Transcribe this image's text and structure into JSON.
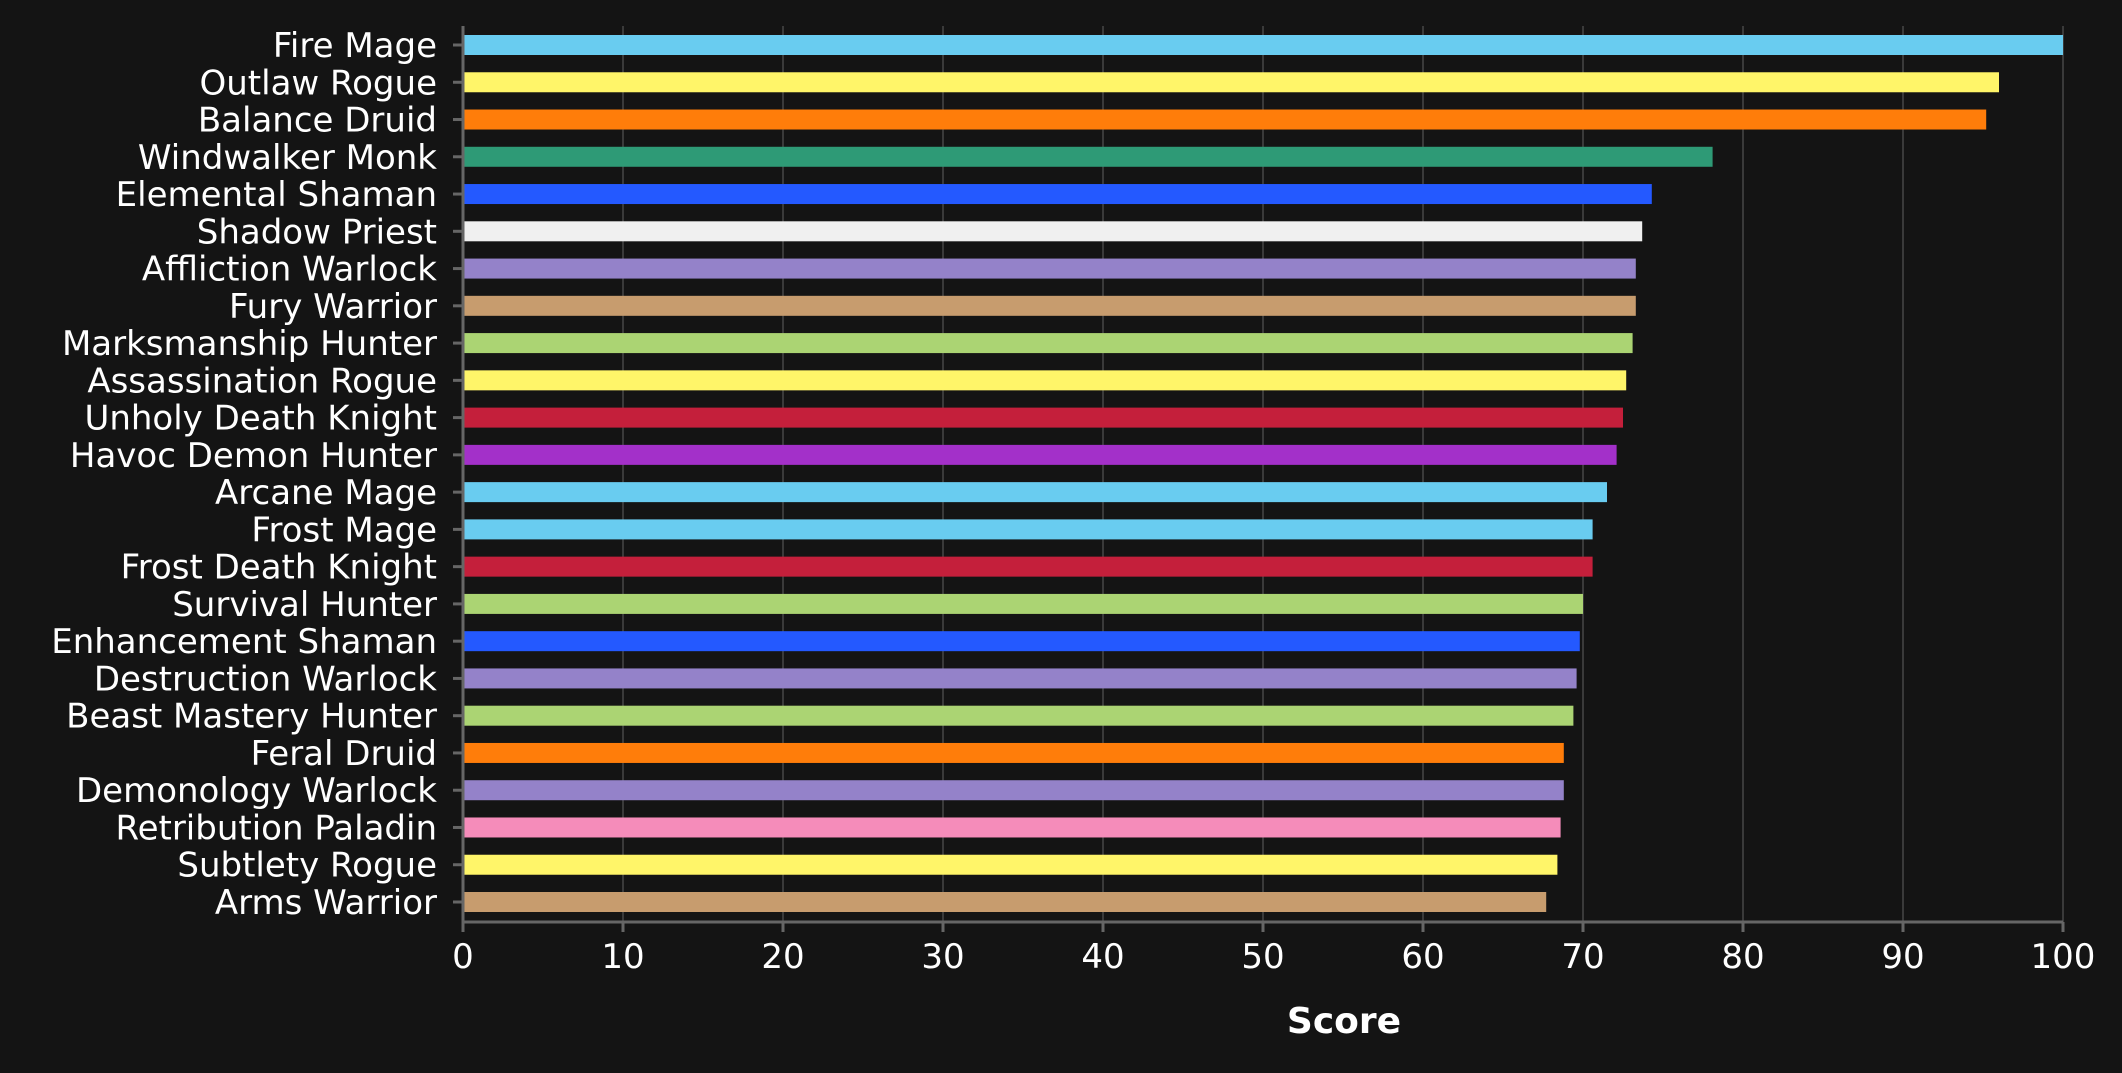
{
  "chart_data": {
    "type": "bar",
    "orientation": "horizontal",
    "categories": [
      "Fire Mage",
      "Outlaw Rogue",
      "Balance Druid",
      "Windwalker Monk",
      "Elemental Shaman",
      "Shadow Priest",
      "Affliction Warlock",
      "Fury Warrior",
      "Marksmanship Hunter",
      "Assassination Rogue",
      "Unholy Death Knight",
      "Havoc Demon Hunter",
      "Arcane Mage",
      "Frost Mage",
      "Frost Death Knight",
      "Survival Hunter",
      "Enhancement Shaman",
      "Destruction Warlock",
      "Beast Mastery Hunter",
      "Feral Druid",
      "Demonology Warlock",
      "Retribution Paladin",
      "Subtlety Rogue",
      "Arms Warrior"
    ],
    "values": [
      100,
      96,
      95.2,
      78.1,
      74.3,
      73.7,
      73.3,
      73.3,
      73.1,
      72.7,
      72.5,
      72.1,
      71.5,
      70.6,
      70.6,
      70.0,
      69.8,
      69.6,
      69.4,
      68.8,
      68.8,
      68.6,
      68.4,
      67.7
    ],
    "colors": [
      "#69CCF0",
      "#FFF569",
      "#FF7D0A",
      "#2E9A76",
      "#2459FF",
      "#F0F0F0",
      "#9482C9",
      "#C79C6E",
      "#ABD473",
      "#FFF569",
      "#C41F3B",
      "#A330C9",
      "#69CCF0",
      "#69CCF0",
      "#C41F3B",
      "#ABD473",
      "#2459FF",
      "#9482C9",
      "#ABD473",
      "#FF7D0A",
      "#9482C9",
      "#F58CBA",
      "#FFF569",
      "#C79C6E"
    ],
    "xlabel": "Score",
    "ylabel": "",
    "xlim": [
      0,
      100
    ],
    "xticks": [
      0,
      10,
      20,
      30,
      40,
      50,
      60,
      70,
      80,
      90,
      100
    ],
    "grid": "vertical",
    "background": "#141414",
    "text_color": "#ffffff"
  }
}
